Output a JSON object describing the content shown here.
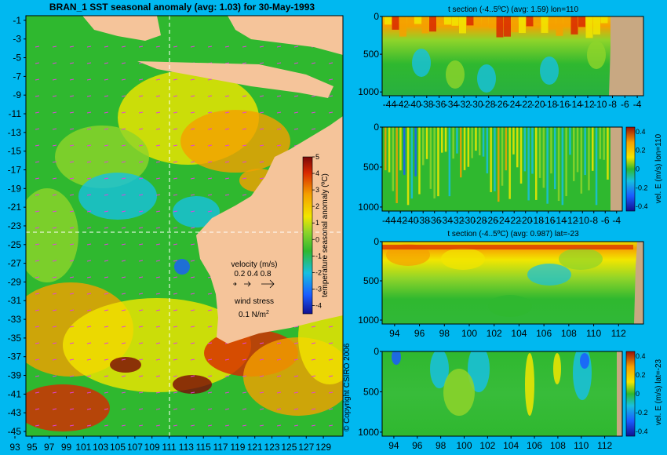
{
  "colors": {
    "background": "#00b8f0",
    "land": "#f5c49a",
    "land_dark": "#c8a882",
    "scale": [
      "#1010a0",
      "#1a6cff",
      "#17c0e0",
      "#2fb82f",
      "#8ed42a",
      "#f2e600",
      "#f5a000",
      "#d82800",
      "#7a0808"
    ]
  },
  "main_map": {
    "title": "BRAN_1  SST seasonal anomaly  (avg: 1.03)  for 30-May-1993",
    "y_ticks": [
      "-1",
      "-3",
      "-5",
      "-7",
      "-9",
      "-11",
      "-13",
      "-15",
      "-17",
      "-19",
      "-21",
      "-23",
      "-25",
      "-27",
      "-29",
      "-31",
      "-33",
      "-35",
      "-37",
      "-39",
      "-41",
      "-43",
      "-45"
    ],
    "x_ticks": [
      "93",
      "95",
      "97",
      "99",
      "101",
      "103",
      "105",
      "107",
      "109",
      "111",
      "113",
      "115",
      "117",
      "119",
      "121",
      "123",
      "125",
      "127",
      "129"
    ],
    "colorbar_label": "temperature seasonal anomaly (ºC)",
    "colorbar_ticks": [
      "5",
      "4",
      "3",
      "2",
      "1",
      "0",
      "-1",
      "-2",
      "-3",
      "-4"
    ],
    "velocity_label": "velocity (m/s)",
    "velocity_scale": "0.2 0.4 0.8",
    "wind_label": "wind stress",
    "wind_scale": "0.1 N/m",
    "wind_exp": "2",
    "copyright": "© Copyright CSIRO 2006"
  },
  "panels": [
    {
      "title": "t section (-4..5ºC) (avg: 1.59) lon=110",
      "y_ticks": [
        "0",
        "500",
        "1000"
      ],
      "x_ticks": [
        "-44",
        "-42",
        "-40",
        "-38",
        "-36",
        "-34",
        "-32",
        "-30",
        "-28",
        "-26",
        "-24",
        "-22",
        "-20",
        "-18",
        "-16",
        "-14",
        "-12",
        "-10",
        "-8",
        "-6",
        "-4"
      ],
      "colorbar_ticks": [],
      "colorbar_label": ""
    },
    {
      "title": "",
      "y_ticks": [
        "0",
        "500",
        "1000"
      ],
      "x_ticks": [
        "-44",
        "-42",
        "-40",
        "-38",
        "-36",
        "-34",
        "-32",
        "-30",
        "-28",
        "-26",
        "-24",
        "-22",
        "-20",
        "-18",
        "-16",
        "-14",
        "-12",
        "-10",
        "-8",
        "-6",
        "-4"
      ],
      "colorbar_ticks": [
        "0.4",
        "0.2",
        "0",
        "-0.2",
        "-0.4"
      ],
      "colorbar_label": "vel. E (m/s) lon=110"
    },
    {
      "title": "t section (-4..5ºC) (avg: 0.987) lat=-23",
      "y_ticks": [
        "0",
        "500",
        "1000"
      ],
      "x_ticks": [
        "94",
        "96",
        "98",
        "100",
        "102",
        "104",
        "106",
        "108",
        "110",
        "112"
      ],
      "colorbar_ticks": [],
      "colorbar_label": ""
    },
    {
      "title": "",
      "y_ticks": [
        "0",
        "500",
        "1000"
      ],
      "x_ticks": [
        "94",
        "96",
        "98",
        "100",
        "102",
        "104",
        "106",
        "108",
        "110",
        "112"
      ],
      "colorbar_ticks": [
        "0.4",
        "0.2",
        "0",
        "-0.2",
        "-0.4"
      ],
      "colorbar_label": "vel. E (m/s) lat=-23"
    }
  ],
  "chart_data": [
    {
      "type": "heatmap",
      "title": "BRAN_1  SST seasonal anomaly  (avg: 1.03)  for 30-May-1993",
      "x_range": [
        93,
        130
      ],
      "y_range": [
        -45,
        0
      ],
      "colorbar_range": [
        -4,
        5
      ],
      "average": 1.03,
      "section_lines": {
        "lon": 110,
        "lat": -23
      }
    },
    {
      "type": "heatmap",
      "title": "t section (-4..5ºC) (avg: 1.59) lon=110",
      "x_range": [
        -45,
        -3
      ],
      "y_range": [
        1050,
        0
      ],
      "average": 1.59
    },
    {
      "type": "heatmap",
      "title": "",
      "x_range": [
        -45,
        -3
      ],
      "y_range": [
        1050,
        0
      ],
      "colorbar_range": [
        -0.45,
        0.45
      ]
    },
    {
      "type": "heatmap",
      "title": "t section (-4..5ºC) (avg: 0.987) lat=-23",
      "x_range": [
        93,
        114
      ],
      "y_range": [
        1050,
        0
      ],
      "average": 0.987
    },
    {
      "type": "heatmap",
      "title": "",
      "x_range": [
        93,
        114
      ],
      "y_range": [
        1050,
        0
      ],
      "colorbar_range": [
        -0.45,
        0.45
      ]
    }
  ]
}
